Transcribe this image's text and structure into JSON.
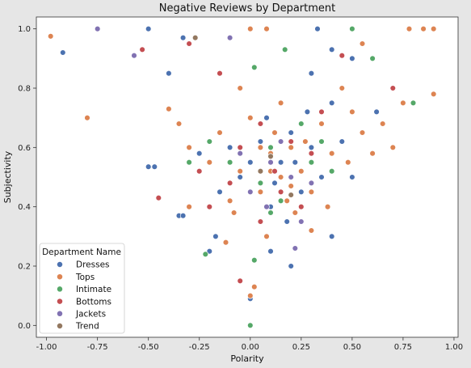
{
  "chart_data": {
    "type": "scatter",
    "title": "Negative Reviews by Department",
    "xlabel": "Polarity",
    "ylabel": "Subjectivity",
    "xlim": [
      -1.05,
      1.02
    ],
    "ylim": [
      -0.04,
      1.04
    ],
    "xticks": [
      "-1.00",
      "-0.75",
      "-0.50",
      "-0.25",
      "0.00",
      "0.25",
      "0.50",
      "0.75",
      "1.00"
    ],
    "xtick_values": [
      -1.0,
      -0.75,
      -0.5,
      -0.25,
      0.0,
      0.25,
      0.5,
      0.75,
      1.0
    ],
    "yticks": [
      "0.0",
      "0.2",
      "0.4",
      "0.6",
      "0.8",
      "1.0"
    ],
    "ytick_values": [
      0.0,
      0.2,
      0.4,
      0.6,
      0.8,
      1.0
    ],
    "grid": false,
    "legend": {
      "title": "Department Name",
      "placement": "lower-left"
    },
    "series": [
      {
        "name": "Dresses",
        "color": "#4c72b0",
        "points": [
          [
            -0.92,
            0.92
          ],
          [
            -0.5,
            1.0
          ],
          [
            -0.33,
            0.97
          ],
          [
            0.33,
            1.0
          ],
          [
            0.5,
            0.9
          ],
          [
            -0.4,
            0.85
          ],
          [
            -0.5,
            0.535
          ],
          [
            -0.47,
            0.535
          ],
          [
            -0.35,
            0.37
          ],
          [
            -0.33,
            0.37
          ],
          [
            -0.2,
            0.25
          ],
          [
            -0.17,
            0.3
          ],
          [
            0.0,
            0.09
          ],
          [
            0.3,
            0.85
          ],
          [
            0.4,
            0.93
          ],
          [
            0.62,
            0.72
          ],
          [
            0.5,
            0.5
          ],
          [
            0.4,
            0.3
          ],
          [
            0.2,
            0.2
          ],
          [
            0.1,
            0.25
          ],
          [
            0.05,
            0.62
          ],
          [
            0.15,
            0.55
          ],
          [
            -0.05,
            0.5
          ],
          [
            0.25,
            0.45
          ],
          [
            0.1,
            0.4
          ],
          [
            0.2,
            0.65
          ],
          [
            0.0,
            0.55
          ],
          [
            0.3,
            0.6
          ],
          [
            -0.1,
            0.6
          ],
          [
            0.12,
            0.48
          ],
          [
            0.08,
            0.7
          ],
          [
            0.35,
            0.5
          ],
          [
            -0.15,
            0.45
          ],
          [
            0.22,
            0.55
          ],
          [
            0.18,
            0.35
          ],
          [
            0.45,
            0.62
          ],
          [
            0.4,
            0.75
          ],
          [
            -0.25,
            0.58
          ],
          [
            0.28,
            0.72
          ],
          [
            0.05,
            0.35
          ]
        ]
      },
      {
        "name": "Tops",
        "color": "#dd8452",
        "points": [
          [
            -0.98,
            0.975
          ],
          [
            -0.8,
            0.7
          ],
          [
            0.0,
            1.0
          ],
          [
            0.08,
            1.0
          ],
          [
            0.78,
            1.0
          ],
          [
            0.85,
            1.0
          ],
          [
            0.9,
            1.0
          ],
          [
            0.55,
            0.95
          ],
          [
            0.75,
            0.75
          ],
          [
            0.9,
            0.78
          ],
          [
            0.7,
            0.6
          ],
          [
            0.0,
            0.1
          ],
          [
            0.02,
            0.13
          ],
          [
            -0.4,
            0.73
          ],
          [
            -0.35,
            0.68
          ],
          [
            -0.3,
            0.6
          ],
          [
            0.15,
            0.5
          ],
          [
            0.1,
            0.58
          ],
          [
            0.2,
            0.6
          ],
          [
            0.05,
            0.45
          ],
          [
            -0.05,
            0.52
          ],
          [
            0.25,
            0.52
          ],
          [
            0.3,
            0.45
          ],
          [
            0.12,
            0.65
          ],
          [
            0.18,
            0.42
          ],
          [
            -0.1,
            0.42
          ],
          [
            0.35,
            0.68
          ],
          [
            0.4,
            0.58
          ],
          [
            0.48,
            0.55
          ],
          [
            0.22,
            0.38
          ],
          [
            0.08,
            0.3
          ],
          [
            -0.2,
            0.55
          ],
          [
            0.55,
            0.65
          ],
          [
            0.6,
            0.58
          ],
          [
            -0.15,
            0.65
          ],
          [
            0.3,
            0.32
          ],
          [
            0.0,
            0.7
          ],
          [
            0.15,
            0.75
          ],
          [
            -0.05,
            0.8
          ],
          [
            0.45,
            0.8
          ],
          [
            0.1,
            0.52
          ],
          [
            0.2,
            0.47
          ],
          [
            0.05,
            0.6
          ],
          [
            -0.08,
            0.38
          ],
          [
            0.27,
            0.62
          ],
          [
            0.38,
            0.4
          ],
          [
            -0.3,
            0.4
          ],
          [
            0.5,
            0.72
          ],
          [
            0.65,
            0.68
          ],
          [
            -0.12,
            0.28
          ]
        ]
      },
      {
        "name": "Intimate",
        "color": "#55a868",
        "points": [
          [
            0.5,
            1.0
          ],
          [
            0.6,
            0.9
          ],
          [
            0.8,
            0.75
          ],
          [
            0.17,
            0.93
          ],
          [
            0.0,
            0.0
          ],
          [
            0.02,
            0.22
          ],
          [
            -0.22,
            0.24
          ],
          [
            0.02,
            0.87
          ],
          [
            0.1,
            0.6
          ],
          [
            0.2,
            0.5
          ],
          [
            -0.1,
            0.55
          ],
          [
            0.3,
            0.55
          ],
          [
            0.15,
            0.42
          ],
          [
            0.25,
            0.68
          ],
          [
            0.05,
            0.48
          ],
          [
            0.35,
            0.62
          ],
          [
            -0.2,
            0.62
          ],
          [
            0.1,
            0.38
          ],
          [
            -0.3,
            0.55
          ],
          [
            0.4,
            0.52
          ]
        ]
      },
      {
        "name": "Bottoms",
        "color": "#c44e52",
        "points": [
          [
            -0.53,
            0.93
          ],
          [
            -0.45,
            0.43
          ],
          [
            -0.05,
            0.15
          ],
          [
            0.7,
            0.8
          ],
          [
            0.45,
            0.91
          ],
          [
            -0.3,
            0.95
          ],
          [
            -0.15,
            0.85
          ],
          [
            0.1,
            0.55
          ],
          [
            0.2,
            0.62
          ],
          [
            -0.1,
            0.48
          ],
          [
            0.15,
            0.45
          ],
          [
            0.3,
            0.58
          ],
          [
            0.05,
            0.68
          ],
          [
            -0.2,
            0.4
          ],
          [
            0.25,
            0.4
          ],
          [
            0.05,
            0.35
          ],
          [
            -0.05,
            0.6
          ],
          [
            0.35,
            0.72
          ],
          [
            0.12,
            0.52
          ],
          [
            -0.25,
            0.52
          ]
        ]
      },
      {
        "name": "Jackets",
        "color": "#8172b2",
        "points": [
          [
            -0.75,
            1.0
          ],
          [
            -0.57,
            0.91
          ],
          [
            -0.1,
            0.97
          ],
          [
            0.22,
            0.26
          ],
          [
            0.1,
            0.55
          ],
          [
            0.2,
            0.5
          ],
          [
            0.0,
            0.45
          ],
          [
            0.15,
            0.62
          ],
          [
            -0.05,
            0.58
          ],
          [
            0.3,
            0.48
          ],
          [
            0.25,
            0.35
          ],
          [
            0.08,
            0.4
          ]
        ]
      },
      {
        "name": "Trend",
        "color": "#937860",
        "points": [
          [
            -0.27,
            0.97
          ],
          [
            0.1,
            0.57
          ],
          [
            0.2,
            0.44
          ],
          [
            0.05,
            0.52
          ]
        ]
      }
    ]
  }
}
